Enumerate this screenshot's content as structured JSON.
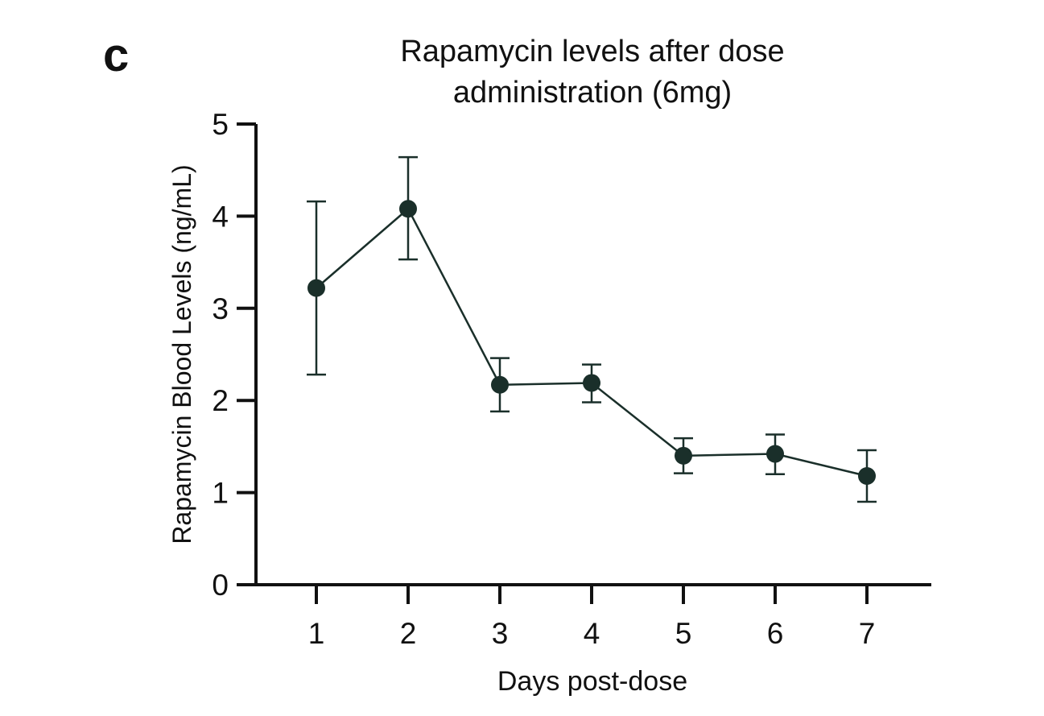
{
  "panel_label": "c",
  "chart_data": {
    "type": "line",
    "title": "Rapamycin levels after dose administration (6mg)",
    "title_lines": [
      "Rapamycin levels after dose",
      "administration (6mg)"
    ],
    "xlabel": "Days post-dose",
    "ylabel": "Rapamycin Blood Levels (ng/mL)",
    "categories": [
      "1",
      "2",
      "3",
      "4",
      "5",
      "6",
      "7"
    ],
    "x": [
      1,
      2,
      3,
      4,
      5,
      6,
      7
    ],
    "y_ticks": [
      "0",
      "1",
      "2",
      "3",
      "4",
      "5"
    ],
    "ylim": [
      0,
      5
    ],
    "grid": false,
    "legend": "none",
    "series": [
      {
        "values": [
          3.22,
          4.08,
          2.17,
          2.19,
          1.4,
          1.42,
          1.18
        ],
        "error_upper": [
          4.16,
          4.64,
          2.46,
          2.39,
          1.59,
          1.63,
          1.46
        ],
        "error_lower": [
          2.28,
          3.53,
          1.88,
          1.98,
          1.21,
          1.2,
          0.9
        ],
        "color": "#1a2f2a"
      }
    ]
  }
}
